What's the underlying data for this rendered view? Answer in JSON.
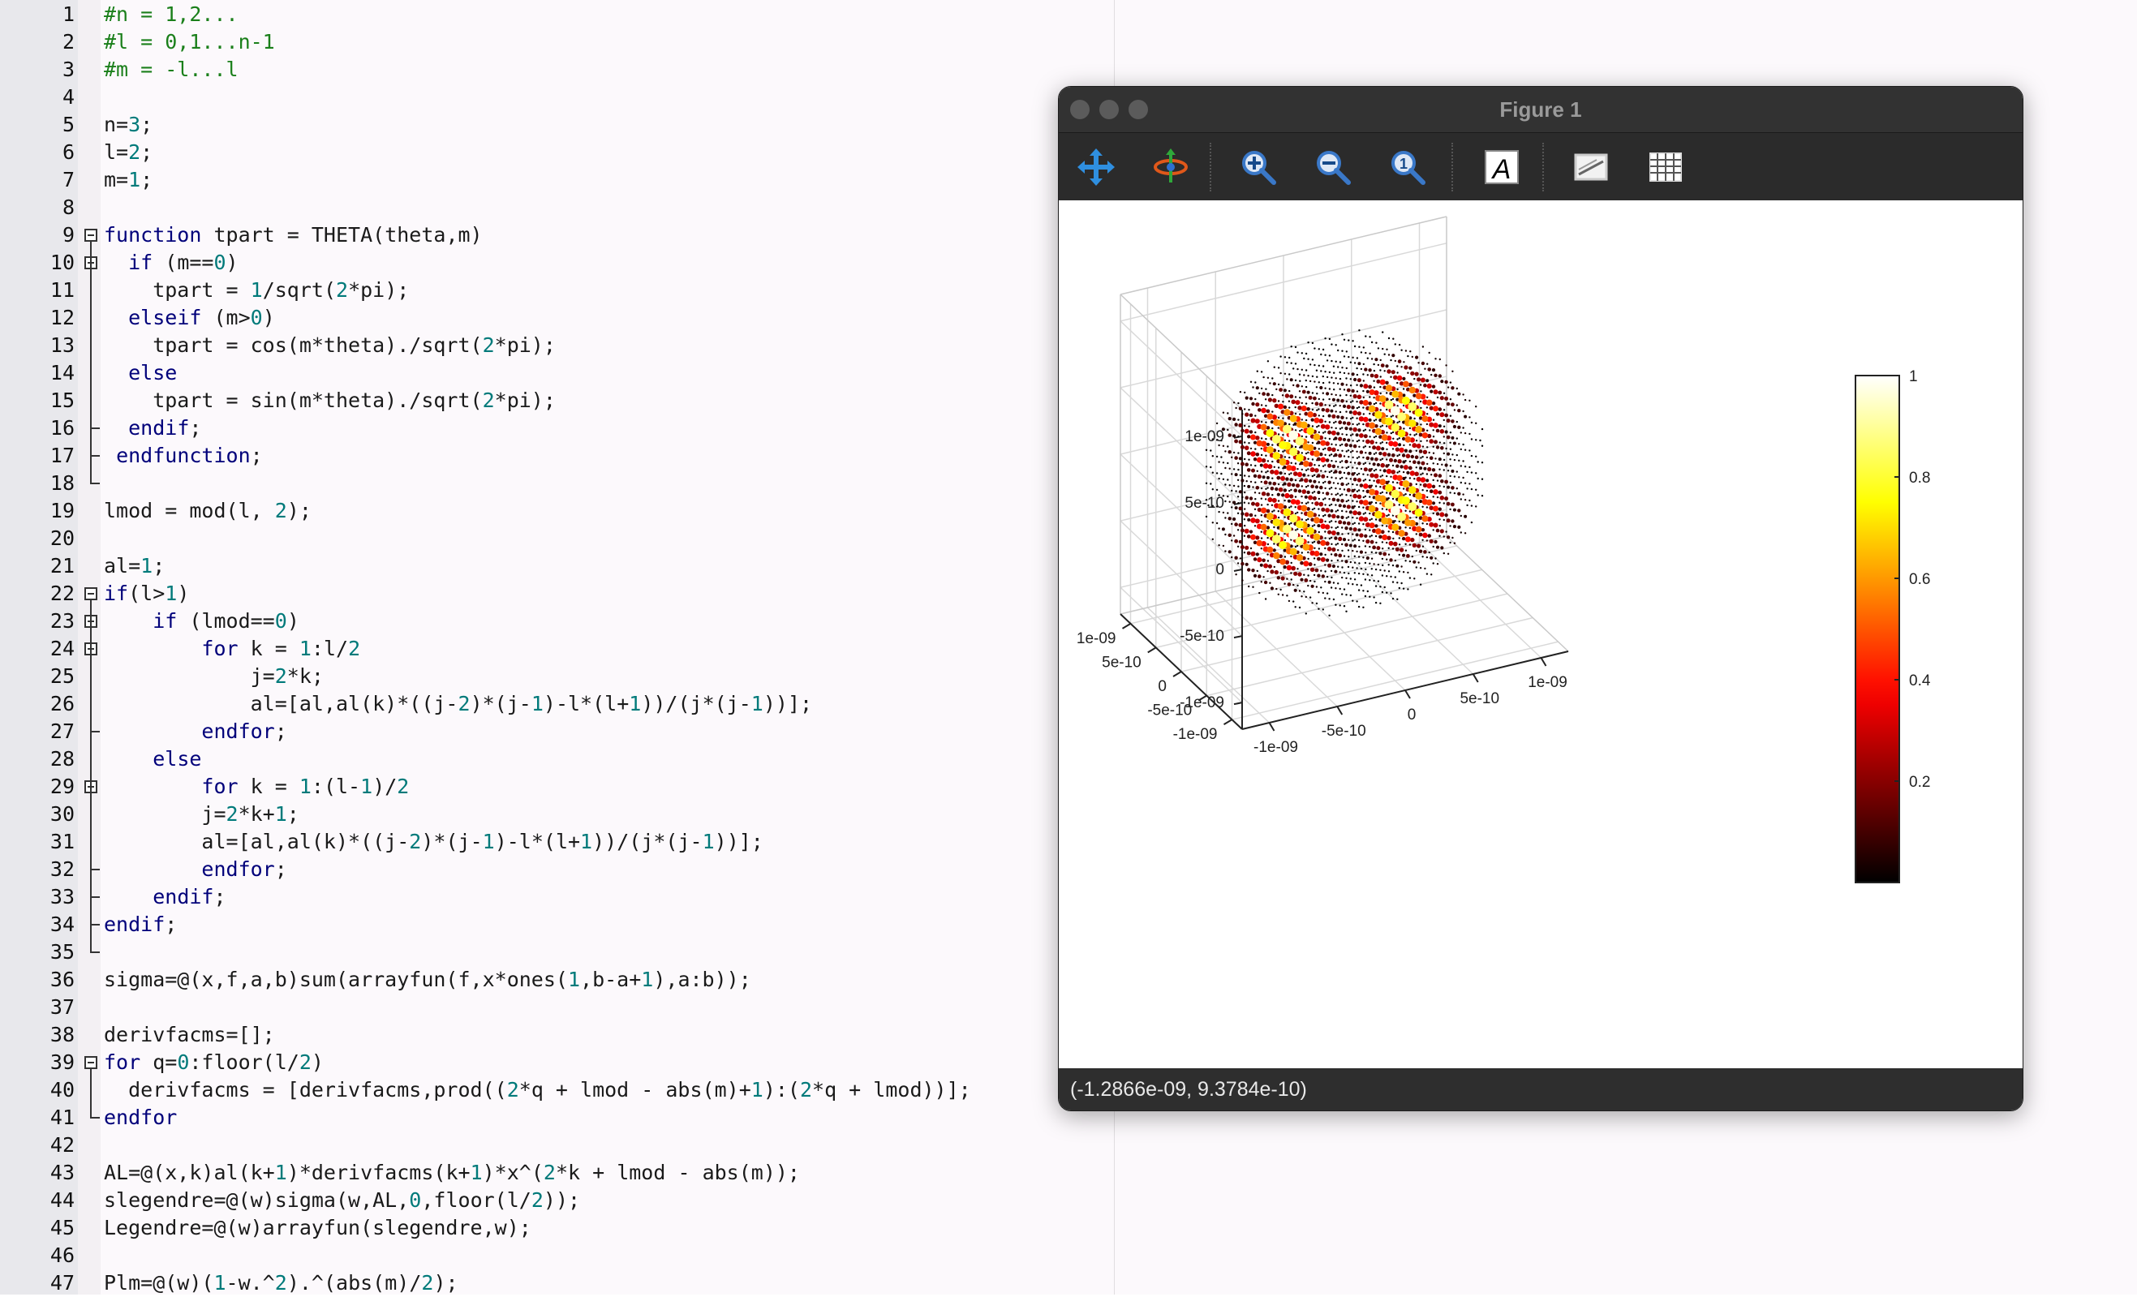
{
  "editor": {
    "lines": [
      {
        "n": "1",
        "t": "#n = 1,2...",
        "k": "comment"
      },
      {
        "n": "2",
        "t": "#l = 0,1...n-1",
        "k": "comment"
      },
      {
        "n": "3",
        "t": "#m = -l...l",
        "k": "comment"
      },
      {
        "n": "4",
        "t": ""
      },
      {
        "n": "5",
        "t": "n=3;"
      },
      {
        "n": "6",
        "t": "l=2;"
      },
      {
        "n": "7",
        "t": "m=1;"
      },
      {
        "n": "8",
        "t": ""
      },
      {
        "n": "9",
        "t": "function tpart = THETA(theta,m)"
      },
      {
        "n": "10",
        "t": "  if (m==0)"
      },
      {
        "n": "11",
        "t": "    tpart = 1/sqrt(2*pi);"
      },
      {
        "n": "12",
        "t": "  elseif (m>0)"
      },
      {
        "n": "13",
        "t": "    tpart = cos(m*theta)./sqrt(2*pi);"
      },
      {
        "n": "14",
        "t": "  else"
      },
      {
        "n": "15",
        "t": "    tpart = sin(m*theta)./sqrt(2*pi);"
      },
      {
        "n": "16",
        "t": "  endif;"
      },
      {
        "n": "17",
        "t": " endfunction;"
      },
      {
        "n": "18",
        "t": ""
      },
      {
        "n": "19",
        "t": "lmod = mod(l, 2);"
      },
      {
        "n": "20",
        "t": ""
      },
      {
        "n": "21",
        "t": "al=1;"
      },
      {
        "n": "22",
        "t": "if(l>1)"
      },
      {
        "n": "23",
        "t": "    if (lmod==0)"
      },
      {
        "n": "24",
        "t": "        for k = 1:l/2"
      },
      {
        "n": "25",
        "t": "            j=2*k;"
      },
      {
        "n": "26",
        "t": "            al=[al,al(k)*((j-2)*(j-1)-l*(l+1))/(j*(j-1))];"
      },
      {
        "n": "27",
        "t": "        endfor;"
      },
      {
        "n": "28",
        "t": "    else"
      },
      {
        "n": "29",
        "t": "        for k = 1:(l-1)/2"
      },
      {
        "n": "30",
        "t": "        j=2*k+1;"
      },
      {
        "n": "31",
        "t": "        al=[al,al(k)*((j-2)*(j-1)-l*(l+1))/(j*(j-1))];"
      },
      {
        "n": "32",
        "t": "        endfor;"
      },
      {
        "n": "33",
        "t": "    endif;"
      },
      {
        "n": "34",
        "t": "endif;"
      },
      {
        "n": "35",
        "t": ""
      },
      {
        "n": "36",
        "t": "sigma=@(x,f,a,b)sum(arrayfun(f,x*ones(1,b-a+1),a:b));"
      },
      {
        "n": "37",
        "t": ""
      },
      {
        "n": "38",
        "t": "derivfacms=[];"
      },
      {
        "n": "39",
        "t": "for q=0:floor(l/2)"
      },
      {
        "n": "40",
        "t": "  derivfacms = [derivfacms,prod((2*q + lmod - abs(m)+1):(2*q + lmod))];"
      },
      {
        "n": "41",
        "t": "endfor"
      },
      {
        "n": "42",
        "t": ""
      },
      {
        "n": "43",
        "t": "AL=@(x,k)al(k+1)*derivfacms(k+1)*x^(2*k + lmod - abs(m));"
      },
      {
        "n": "44",
        "t": "slegendre=@(w)sigma(w,AL,0,floor(l/2));"
      },
      {
        "n": "45",
        "t": "Legendre=@(w)arrayfun(slegendre,w);"
      },
      {
        "n": "46",
        "t": ""
      },
      {
        "n": "47",
        "t": "Plm=@(w)(1-w.^2).^(abs(m)/2);"
      }
    ],
    "keywords": [
      "function",
      "endfunction",
      "if",
      "elseif",
      "else",
      "endif",
      "for",
      "endfor"
    ]
  },
  "figure": {
    "title": "Figure 1",
    "toolbar": [
      {
        "name": "pan-icon",
        "label": "Pan"
      },
      {
        "name": "rotate-icon",
        "label": "Rotate"
      },
      {
        "name": "zoom-in-icon",
        "label": "Zoom In"
      },
      {
        "name": "zoom-out-icon",
        "label": "Zoom Out"
      },
      {
        "name": "zoom-original-icon",
        "label": "Original View"
      },
      {
        "name": "insert-text-icon",
        "label": "Insert Text"
      },
      {
        "name": "toggle-axes-icon",
        "label": "Toggle Axes"
      },
      {
        "name": "toggle-grid-icon",
        "label": "Toggle Grid"
      }
    ],
    "status": "(-1.2866e-09, 9.3784e-10)"
  },
  "chart_data": {
    "type": "scatter",
    "subtype": "3d-scatter",
    "title": "",
    "xlabel": "",
    "ylabel": "",
    "zlabel": "",
    "x_ticks": [
      "-1e-09",
      "-5e-10",
      "0",
      "5e-10",
      "1e-09"
    ],
    "y_ticks": [
      "-1e-09",
      "-5e-10",
      "0",
      "5e-10",
      "1e-09"
    ],
    "z_ticks": [
      "-1e-09",
      "-5e-10",
      "0",
      "5e-10",
      "1e-09"
    ],
    "xlim": [
      -1.2e-09,
      1.2e-09
    ],
    "ylim": [
      -1.2e-09,
      1.2e-09
    ],
    "zlim": [
      -1.2e-09,
      1.2e-09
    ],
    "grid": true,
    "colormap": "hot",
    "colorbar": {
      "ticks": [
        "0.2",
        "0.4",
        "0.6",
        "0.8",
        "1"
      ],
      "range": [
        0,
        1
      ],
      "placement": "right"
    },
    "lobes": [
      {
        "x": -4e-10,
        "y": 0,
        "z": 3.5e-10,
        "value": 1
      },
      {
        "x": 4e-10,
        "y": 0,
        "z": 3.5e-10,
        "value": 1
      },
      {
        "x": -4e-10,
        "y": 0,
        "z": -3.5e-10,
        "value": 1
      },
      {
        "x": 4e-10,
        "y": 0,
        "z": -3.5e-10,
        "value": 1
      }
    ]
  }
}
